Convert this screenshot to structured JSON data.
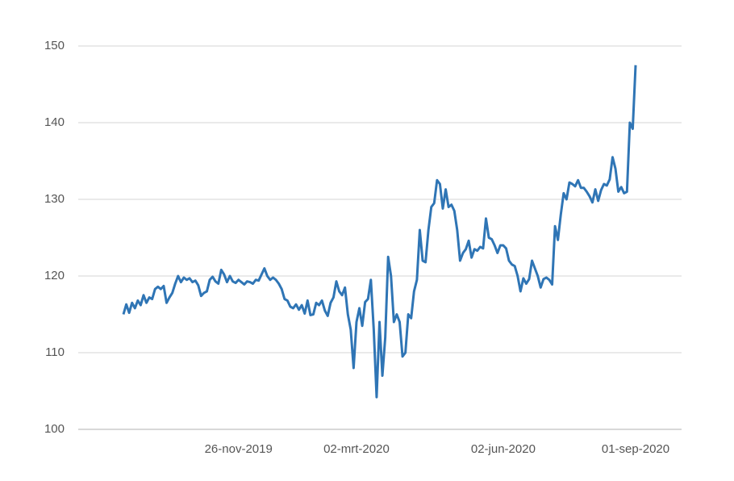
{
  "chart_data": {
    "type": "line",
    "categories": [
      null,
      null,
      null,
      null,
      null,
      null,
      null,
      null,
      null,
      null,
      null,
      null,
      null,
      null,
      null,
      null,
      null,
      null,
      null,
      null,
      null,
      null,
      null,
      null,
      null,
      null,
      null,
      null,
      null,
      null,
      null,
      null,
      null,
      null,
      null,
      null,
      null,
      null,
      null,
      null,
      "26-nov-2019",
      null,
      null,
      null,
      null,
      null,
      null,
      null,
      null,
      null,
      null,
      null,
      null,
      null,
      null,
      null,
      null,
      null,
      null,
      null,
      null,
      null,
      null,
      null,
      null,
      null,
      null,
      null,
      null,
      null,
      null,
      null,
      null,
      null,
      null,
      null,
      null,
      null,
      null,
      null,
      null,
      "02-mrt-2020",
      null,
      null,
      null,
      null,
      null,
      null,
      null,
      null,
      null,
      null,
      null,
      null,
      null,
      null,
      null,
      null,
      null,
      null,
      null,
      null,
      null,
      null,
      null,
      null,
      null,
      null,
      null,
      null,
      null,
      null,
      null,
      null,
      null,
      null,
      null,
      null,
      null,
      null,
      null,
      null,
      null,
      null,
      null,
      null,
      null,
      null,
      null,
      null,
      null,
      null,
      "02-jun-2020",
      null,
      null,
      null,
      null,
      null,
      null,
      null,
      null,
      null,
      null,
      null,
      null,
      null,
      null,
      null,
      null,
      null,
      null,
      null,
      null,
      null,
      null,
      null,
      null,
      null,
      null,
      null,
      null,
      null,
      null,
      null,
      null,
      null,
      null,
      null,
      null,
      null,
      null,
      null,
      null,
      null,
      null,
      null,
      null,
      null,
      "01-sep-2020"
    ],
    "values": [
      115,
      116.3,
      115.2,
      116.5,
      115.8,
      116.8,
      116.2,
      117.5,
      116.5,
      117.2,
      117,
      118.3,
      118.6,
      118.3,
      118.7,
      116.5,
      117.2,
      117.8,
      119,
      120,
      119.2,
      119.8,
      119.5,
      119.7,
      119.2,
      119.4,
      118.8,
      117.4,
      117.8,
      118,
      119.5,
      119.9,
      119.3,
      119,
      120.8,
      120.2,
      119.2,
      120,
      119.3,
      119.1,
      119.5,
      119.2,
      118.9,
      119.3,
      119.2,
      119,
      119.5,
      119.4,
      120.2,
      121,
      120,
      119.5,
      119.8,
      119.5,
      119,
      118.3,
      117,
      116.8,
      116,
      115.8,
      116.3,
      115.6,
      116.2,
      115.1,
      116.8,
      114.9,
      115,
      116.5,
      116.2,
      116.8,
      115.5,
      114.8,
      116.5,
      117.2,
      119.3,
      118,
      117.5,
      118.5,
      115,
      113,
      108,
      114,
      115.8,
      113.5,
      116.6,
      117,
      119.5,
      113,
      104.2,
      114,
      107,
      112,
      122.5,
      120,
      114,
      115,
      114,
      109.5,
      110,
      115,
      114.5,
      118,
      119.5,
      126,
      122,
      121.8,
      126,
      129,
      129.5,
      132.5,
      132,
      128.8,
      131.3,
      129,
      129.3,
      128.5,
      126,
      122,
      123,
      123.5,
      124.6,
      122.4,
      123.5,
      123.3,
      123.8,
      123.6,
      127.5,
      125,
      124.8,
      124,
      123,
      124,
      124,
      123.6,
      122,
      121.5,
      121.3,
      120,
      118,
      119.7,
      119,
      119.6,
      122,
      121,
      120,
      118.5,
      119.6,
      119.8,
      119.5,
      118.9,
      126.5,
      124.7,
      128,
      130.8,
      130,
      132.2,
      132,
      131.7,
      132.5,
      131.5,
      131.5,
      131,
      130.4,
      129.6,
      131.3,
      129.8,
      131.2,
      132,
      131.8,
      132.6,
      135.5,
      134,
      131,
      131.6,
      130.8,
      131,
      140,
      139.2,
      147.5
    ],
    "color": "#2f75b5",
    "ylim": [
      100,
      150
    ],
    "yticks": [
      100,
      110,
      120,
      130,
      140,
      150
    ],
    "grid": true
  }
}
